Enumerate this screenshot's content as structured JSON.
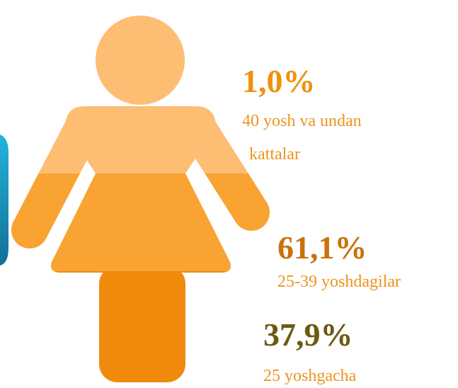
{
  "items": [
    {
      "value_label": "1,0%",
      "label_lines": [
        "40 yosh va undan",
        "kattalar"
      ]
    },
    {
      "value_label": "61,1%",
      "label_lines": [
        "25-39 yoshdagilar"
      ]
    },
    {
      "value_label": "37,9%",
      "label_lines": [
        "25 yoshgacha"
      ]
    }
  ]
}
